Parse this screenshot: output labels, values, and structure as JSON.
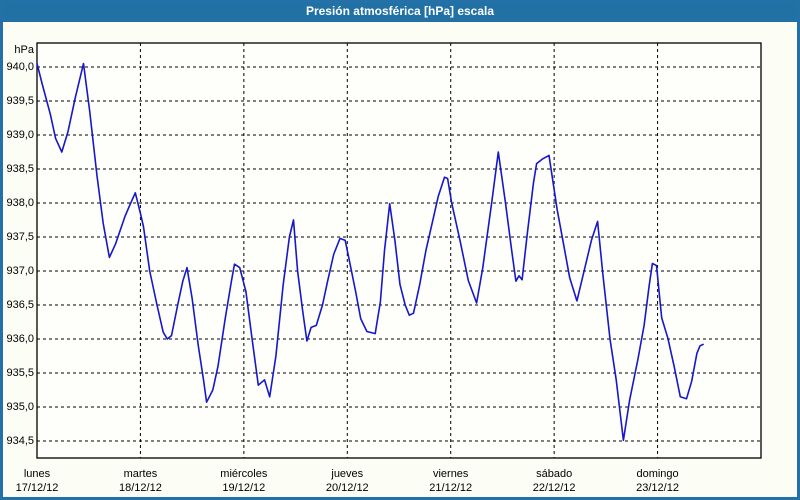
{
  "window": {
    "title": "Presión atmosférica [hPa] escala"
  },
  "colors": {
    "frame_border": "#2470a8",
    "titlebar_bg": "#2171a5",
    "title_text": "#ffffff",
    "background": "#fcfdf5",
    "plot_bg": "#fefefa",
    "grid": "#000000",
    "line": "#1717cb",
    "label_text": "#000000"
  },
  "chart_data": {
    "type": "line",
    "title": "Presión atmosférica [hPa] escala",
    "xlabel": "",
    "ylabel": "hPa",
    "legend": "none",
    "grid": "dashed",
    "ylim": [
      934.25,
      940.35
    ],
    "y_ticks": [
      {
        "value": 940.0,
        "label": "940,0"
      },
      {
        "value": 939.5,
        "label": "939,5"
      },
      {
        "value": 939.0,
        "label": "939,0"
      },
      {
        "value": 938.5,
        "label": "938,5"
      },
      {
        "value": 938.0,
        "label": "938,0"
      },
      {
        "value": 937.5,
        "label": "937,5"
      },
      {
        "value": 937.0,
        "label": "937,0"
      },
      {
        "value": 936.5,
        "label": "936,5"
      },
      {
        "value": 936.0,
        "label": "936,0"
      },
      {
        "value": 935.5,
        "label": "935,5"
      },
      {
        "value": 935.0,
        "label": "935,0"
      },
      {
        "value": 934.5,
        "label": "934,5"
      }
    ],
    "x_axis": {
      "span_days": 7,
      "days": [
        {
          "name": "lunes",
          "date": "17/12/12"
        },
        {
          "name": "martes",
          "date": "18/12/12"
        },
        {
          "name": "miércoles",
          "date": "19/12/12"
        },
        {
          "name": "jueves",
          "date": "20/12/12"
        },
        {
          "name": "viernes",
          "date": "21/12/12"
        },
        {
          "name": "sábado",
          "date": "22/12/12"
        },
        {
          "name": "domingo",
          "date": "23/12/12"
        }
      ]
    },
    "series": [
      {
        "name": "Presión atmosférica",
        "units": "hPa",
        "points_day_hpa": [
          [
            0.0,
            940.05
          ],
          [
            0.05,
            939.75
          ],
          [
            0.13,
            939.3
          ],
          [
            0.18,
            938.95
          ],
          [
            0.24,
            938.75
          ],
          [
            0.3,
            939.05
          ],
          [
            0.37,
            939.55
          ],
          [
            0.45,
            940.05
          ],
          [
            0.51,
            939.35
          ],
          [
            0.58,
            938.4
          ],
          [
            0.64,
            937.7
          ],
          [
            0.7,
            937.2
          ],
          [
            0.76,
            937.4
          ],
          [
            0.85,
            937.8
          ],
          [
            0.9,
            937.98
          ],
          [
            0.95,
            938.15
          ],
          [
            1.0,
            937.85
          ],
          [
            1.03,
            937.65
          ],
          [
            1.09,
            937.0
          ],
          [
            1.16,
            936.5
          ],
          [
            1.22,
            936.1
          ],
          [
            1.26,
            936.0
          ],
          [
            1.3,
            936.05
          ],
          [
            1.36,
            936.5
          ],
          [
            1.41,
            936.85
          ],
          [
            1.45,
            937.05
          ],
          [
            1.5,
            936.6
          ],
          [
            1.56,
            935.9
          ],
          [
            1.61,
            935.4
          ],
          [
            1.64,
            935.07
          ],
          [
            1.7,
            935.25
          ],
          [
            1.75,
            935.6
          ],
          [
            1.82,
            936.3
          ],
          [
            1.88,
            936.85
          ],
          [
            1.91,
            937.1
          ],
          [
            1.96,
            937.05
          ],
          [
            2.02,
            936.7
          ],
          [
            2.08,
            936.0
          ],
          [
            2.14,
            935.32
          ],
          [
            2.2,
            935.4
          ],
          [
            2.25,
            935.15
          ],
          [
            2.31,
            935.75
          ],
          [
            2.38,
            936.8
          ],
          [
            2.44,
            937.5
          ],
          [
            2.48,
            937.75
          ],
          [
            2.52,
            937.0
          ],
          [
            2.57,
            936.4
          ],
          [
            2.61,
            935.97
          ],
          [
            2.65,
            936.17
          ],
          [
            2.7,
            936.2
          ],
          [
            2.76,
            936.5
          ],
          [
            2.81,
            936.85
          ],
          [
            2.87,
            937.25
          ],
          [
            2.93,
            937.48
          ],
          [
            2.98,
            937.45
          ],
          [
            3.02,
            937.15
          ],
          [
            3.08,
            936.7
          ],
          [
            3.13,
            936.3
          ],
          [
            3.19,
            936.11
          ],
          [
            3.27,
            936.08
          ],
          [
            3.32,
            936.55
          ],
          [
            3.36,
            937.3
          ],
          [
            3.41,
            937.99
          ],
          [
            3.46,
            937.45
          ],
          [
            3.51,
            936.8
          ],
          [
            3.56,
            936.5
          ],
          [
            3.6,
            936.35
          ],
          [
            3.64,
            936.38
          ],
          [
            3.7,
            936.8
          ],
          [
            3.76,
            937.3
          ],
          [
            3.82,
            937.7
          ],
          [
            3.88,
            938.1
          ],
          [
            3.94,
            938.38
          ],
          [
            3.97,
            938.36
          ],
          [
            4.01,
            938.0
          ],
          [
            4.09,
            937.45
          ],
          [
            4.17,
            936.86
          ],
          [
            4.25,
            936.53
          ],
          [
            4.31,
            937.05
          ],
          [
            4.4,
            938.05
          ],
          [
            4.46,
            938.75
          ],
          [
            4.53,
            938.0
          ],
          [
            4.59,
            937.3
          ],
          [
            4.63,
            936.85
          ],
          [
            4.66,
            936.93
          ],
          [
            4.69,
            936.87
          ],
          [
            4.74,
            937.55
          ],
          [
            4.8,
            938.3
          ],
          [
            4.83,
            938.58
          ],
          [
            4.89,
            938.65
          ],
          [
            4.95,
            938.7
          ],
          [
            4.99,
            938.3
          ],
          [
            5.03,
            937.9
          ],
          [
            5.09,
            937.4
          ],
          [
            5.15,
            936.9
          ],
          [
            5.22,
            936.56
          ],
          [
            5.29,
            937.0
          ],
          [
            5.36,
            937.45
          ],
          [
            5.42,
            937.73
          ],
          [
            5.47,
            936.96
          ],
          [
            5.54,
            936.0
          ],
          [
            5.6,
            935.4
          ],
          [
            5.67,
            934.51
          ],
          [
            5.73,
            935.1
          ],
          [
            5.81,
            935.7
          ],
          [
            5.87,
            936.2
          ],
          [
            5.92,
            936.8
          ],
          [
            5.95,
            937.11
          ],
          [
            5.99,
            937.08
          ],
          [
            6.04,
            936.31
          ],
          [
            6.1,
            936.01
          ],
          [
            6.16,
            935.6
          ],
          [
            6.22,
            935.15
          ],
          [
            6.28,
            935.12
          ],
          [
            6.33,
            935.38
          ],
          [
            6.38,
            935.79
          ],
          [
            6.41,
            935.9
          ],
          [
            6.44,
            935.92
          ]
        ]
      }
    ]
  }
}
